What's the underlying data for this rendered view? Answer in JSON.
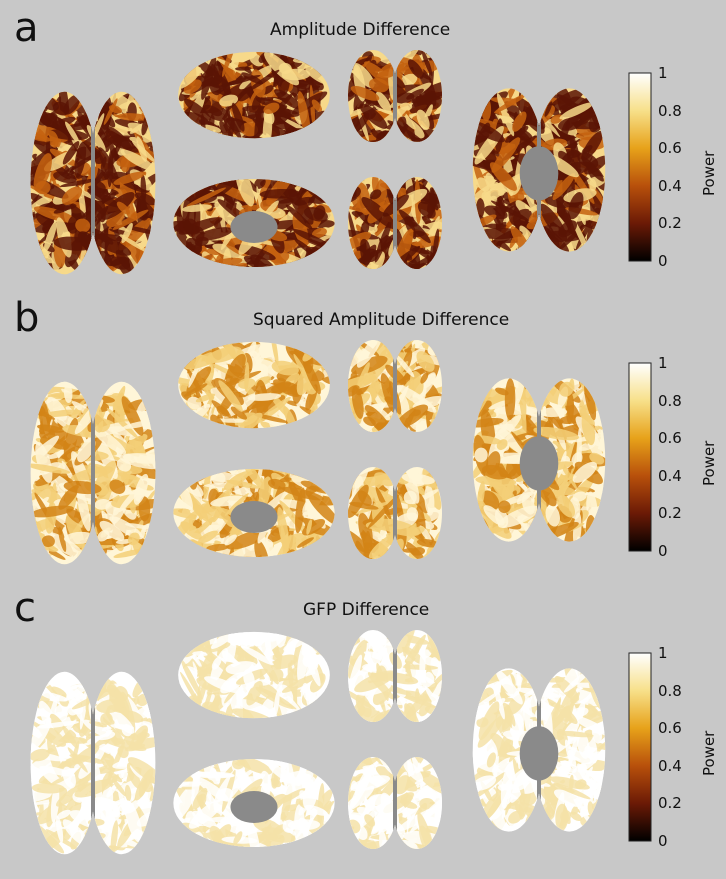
{
  "panels": [
    {
      "letter": "a",
      "title": "Amplitude Difference",
      "style": "hot-patchy"
    },
    {
      "letter": "b",
      "title": "Squared Amplitude Difference",
      "style": "mixed"
    },
    {
      "letter": "c",
      "title": "GFP Difference",
      "style": "mostly-white"
    }
  ],
  "colorbar": {
    "label": "Power",
    "ticks": [
      "1",
      "0.8",
      "0.6",
      "0.4",
      "0.2",
      "0"
    ],
    "colors": [
      "#ffffff",
      "#f7e08a",
      "#e7a21a",
      "#b8500b",
      "#6b1a06",
      "#000000"
    ]
  },
  "views": [
    "dorsal-view",
    "lateral-view",
    "posterior-view",
    "ventral-view",
    "medial-view",
    "anterior-view"
  ]
}
